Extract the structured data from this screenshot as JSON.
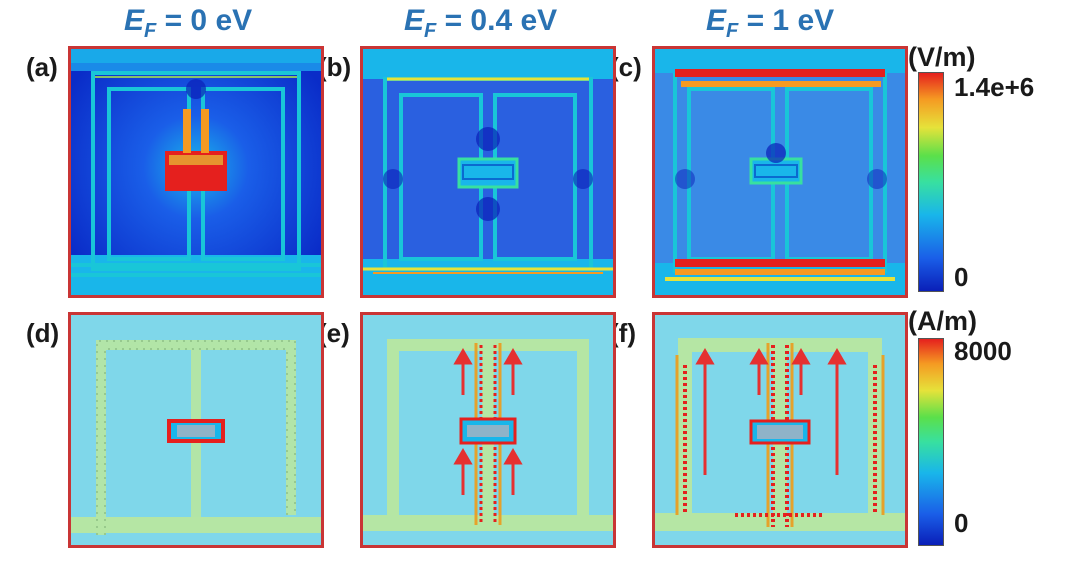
{
  "columns": [
    {
      "symbol": "E",
      "subscript": "F",
      "value_text": " = 0 eV"
    },
    {
      "symbol": "E",
      "subscript": "F",
      "value_text": " = 0.4 eV"
    },
    {
      "symbol": "E",
      "subscript": "F",
      "value_text": " = 1 eV"
    }
  ],
  "panels": {
    "a": "(a)",
    "b": "(b)",
    "c": "(c)",
    "d": "(d)",
    "e": "(e)",
    "f": "(f)"
  },
  "colorbar_top": {
    "unit": "(V/m)",
    "max": "1.4e+6",
    "min": "0"
  },
  "colorbar_bottom": {
    "unit": "(A/m)",
    "max": "8000",
    "min": "0"
  },
  "colors": {
    "panel_border": "#c93535",
    "title_blue": "#2a72b3",
    "arrow_red": "#e53030",
    "field_background": "#2f6ae0",
    "current_background": "#7fd7ea"
  },
  "colormap": [
    "#0a1fb8",
    "#1a5ee8",
    "#19b6ea",
    "#38e0a0",
    "#5be04a",
    "#e6e23a",
    "#f59a22",
    "#e5201e"
  ]
}
